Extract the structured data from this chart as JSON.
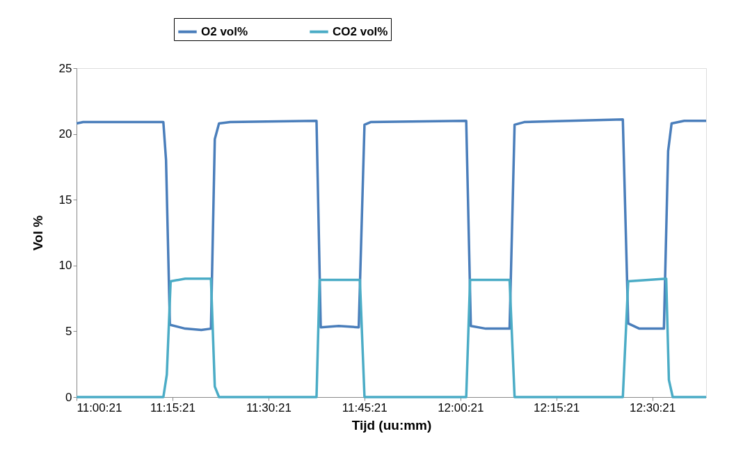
{
  "chart_data": {
    "type": "line",
    "xlabel": "Tijd (uu:mm)",
    "ylabel": "Vol %",
    "xlim": [
      11.0058,
      12.646
    ],
    "xticks": [
      {
        "value": 11.0058,
        "label": "11:00:21"
      },
      {
        "value": 11.2558,
        "label": "11:15:21"
      },
      {
        "value": 11.5058,
        "label": "11:30:21"
      },
      {
        "value": 11.7558,
        "label": "11:45:21"
      },
      {
        "value": 12.0058,
        "label": "12:00:21"
      },
      {
        "value": 12.2558,
        "label": "12:15:21"
      },
      {
        "value": 12.5058,
        "label": "12:30:21"
      }
    ],
    "ylim": [
      0,
      25
    ],
    "yticks": [
      0,
      5,
      10,
      15,
      20,
      25
    ],
    "grid": false,
    "legend": "top",
    "marker": "none",
    "line_style": "solid",
    "series": [
      {
        "name": "O2 vol%",
        "color": "#4a7ebb",
        "x": [
          11.006,
          11.023,
          11.232,
          11.239,
          11.249,
          11.289,
          11.331,
          11.356,
          11.366,
          11.377,
          11.406,
          11.631,
          11.642,
          11.689,
          11.741,
          11.756,
          11.772,
          12.021,
          12.033,
          12.072,
          12.134,
          12.147,
          12.172,
          12.429,
          12.443,
          12.472,
          12.536,
          12.547,
          12.556,
          12.589,
          12.646
        ],
        "values": [
          20.8,
          20.9,
          20.9,
          18.0,
          5.5,
          5.2,
          5.1,
          5.2,
          19.6,
          20.8,
          20.9,
          21.0,
          5.3,
          5.4,
          5.3,
          20.7,
          20.9,
          21.0,
          5.4,
          5.2,
          5.2,
          20.7,
          20.9,
          21.1,
          5.6,
          5.2,
          5.2,
          18.7,
          20.8,
          21.0,
          21.0
        ]
      },
      {
        "name": "CO2 vol%",
        "color": "#4bacc6",
        "x": [
          11.006,
          11.232,
          11.241,
          11.251,
          11.289,
          11.356,
          11.366,
          11.377,
          11.631,
          11.639,
          11.744,
          11.756,
          12.021,
          12.031,
          12.134,
          12.147,
          12.429,
          12.443,
          12.542,
          12.549,
          12.559,
          12.646
        ],
        "values": [
          0,
          0,
          1.7,
          8.8,
          9.0,
          9.0,
          0.8,
          0,
          0,
          8.9,
          8.9,
          0,
          0,
          8.9,
          8.9,
          0,
          0,
          8.8,
          9.0,
          1.3,
          0,
          0
        ]
      }
    ]
  }
}
